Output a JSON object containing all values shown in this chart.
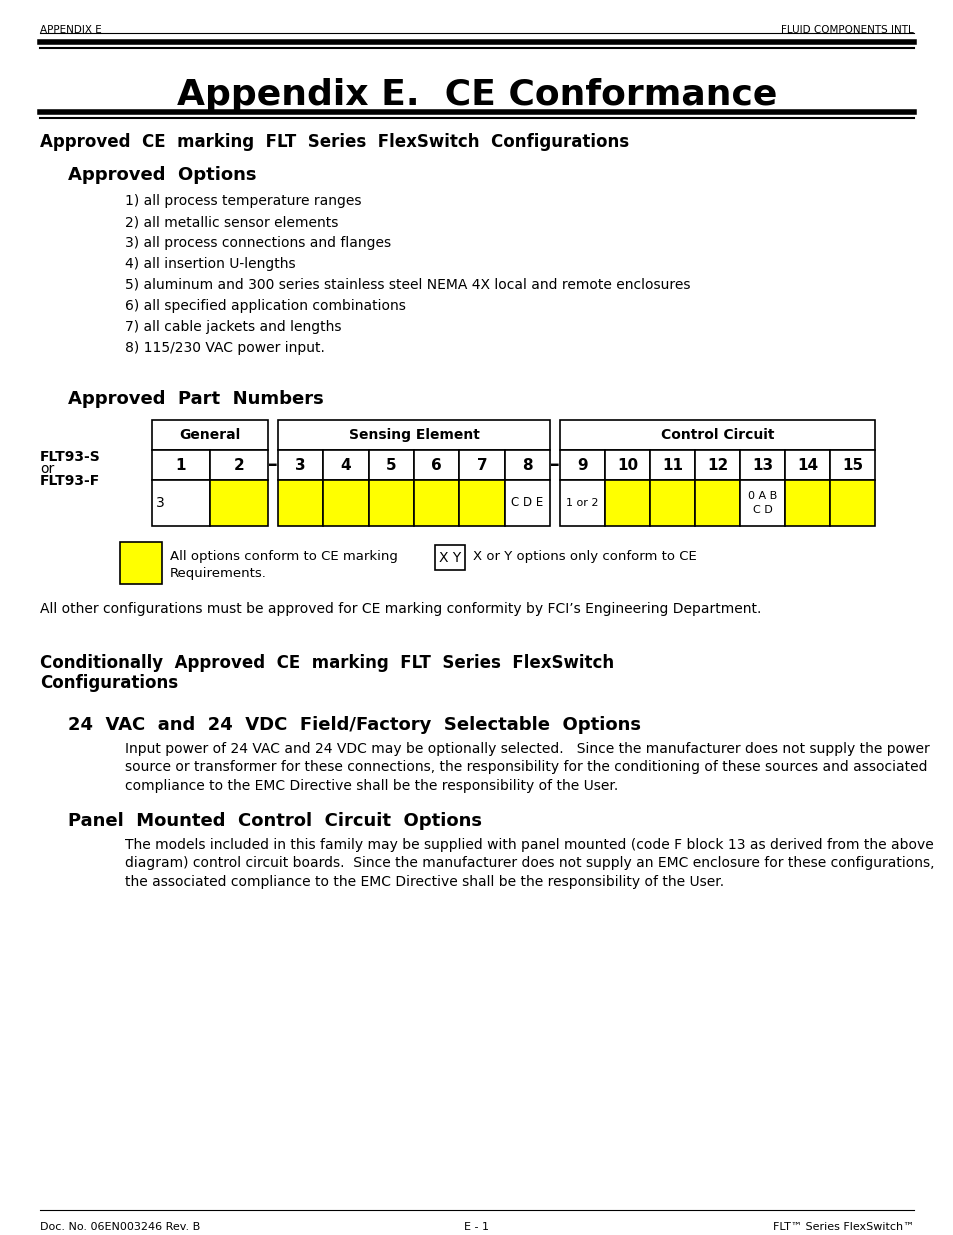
{
  "header_left": "APPENDIX E",
  "header_right": "FLUID COMPONENTS INTL",
  "title": "Appendix E.  CE Conformance",
  "section1_heading": "Approved  CE  marking  FLT  Series  FlexSwitch  Configurations",
  "approved_options_heading": "Approved  Options",
  "approved_options": [
    "1) all process temperature ranges",
    "2) all metallic sensor elements",
    "3) all process connections and flanges",
    "4) all insertion U-lengths",
    "5) aluminum and 300 series stainless steel NEMA 4X local and remote enclosures",
    "6) all specified application combinations",
    "7) all cable jackets and lengths",
    "8) 115/230 VAC power input."
  ],
  "part_numbers_heading": "Approved  Part  Numbers",
  "yellow_color": "#FFFF00",
  "legend_yellow_text": "All options conform to CE marking\nRequirements.",
  "legend_xy_text": "X or Y options only conform to CE",
  "legend_xy_label": "X Y",
  "all_other_text": "All other configurations must be approved for CE marking conformity by FCI’s Engineering Department.",
  "cond_heading1": "Conditionally  Approved  CE  marking  FLT  Series  FlexSwitch",
  "cond_heading2": "Configurations",
  "sub_heading1": "24  VAC  and  24  VDC  Field/Factory  Selectable  Options",
  "sub_text1": "Input power of 24 VAC and 24 VDC may be optionally selected.   Since the manufacturer does not supply the power\nsource or transformer for these connections, the responsibility for the conditioning of these sources and associated\ncompliance to the EMC Directive shall be the responsibility of the User.",
  "sub_heading2": "Panel  Mounted  Control  Circuit  Options",
  "sub_text2": "The models included in this family may be supplied with panel mounted (code F block 13 as derived from the above\ndiagram) control circuit boards.  Since the manufacturer does not supply an EMC enclosure for these configurations,\nthe associated compliance to the EMC Directive shall be the responsibility of the User.",
  "footer_left": "Doc. No. 06EN003246 Rev. B",
  "footer_center": "E - 1",
  "footer_right": "FLT™ Series FlexSwitch™",
  "bg_color": "#FFFFFF"
}
